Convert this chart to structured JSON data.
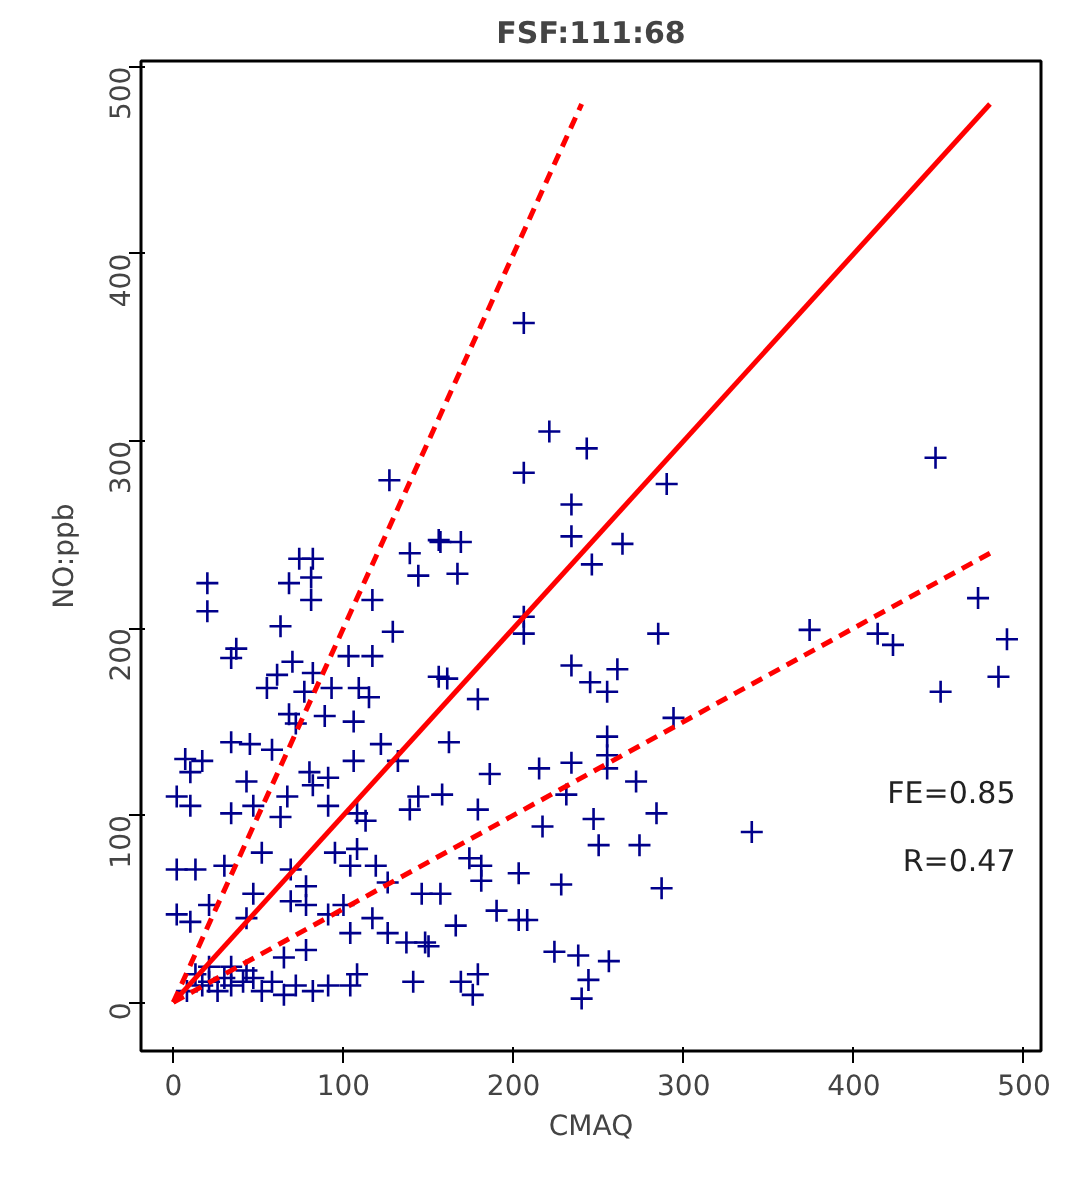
{
  "chart_data": {
    "type": "scatter",
    "title": "FSF:111:68",
    "xlabel": "CMAQ",
    "ylabel": "NO:ppb",
    "xlim": [
      -19,
      510
    ],
    "ylim": [
      -26,
      503
    ],
    "xticks": [
      0,
      100,
      200,
      300,
      400,
      500
    ],
    "yticks": [
      0,
      100,
      200,
      300,
      400,
      500
    ],
    "grid": false,
    "annotations": [
      "FE=0.85",
      "R=0.47"
    ],
    "series": [
      {
        "marker": "cross",
        "color": "#00008b",
        "x": [
          206,
          221,
          243,
          206,
          290,
          234,
          234,
          264,
          246,
          157,
          169,
          167,
          448,
          206,
          206,
          285,
          374,
          414,
          423,
          473,
          490,
          485,
          451,
          161,
          179,
          234,
          245,
          255,
          261,
          294,
          162,
          255,
          255,
          215,
          234,
          186,
          255,
          272,
          158,
          179,
          231,
          284,
          217,
          247,
          250,
          274,
          340,
          174,
          181,
          181,
          203,
          228,
          287,
          157,
          190,
          203,
          208,
          166,
          150,
          224,
          238,
          256,
          169,
          179,
          176,
          244,
          240,
          127,
          156,
          82,
          74,
          139,
          144,
          68,
          81,
          20,
          20,
          81,
          117,
          63,
          37,
          34,
          129,
          70,
          61,
          55,
          82,
          93,
          77,
          103,
          117,
          109,
          115,
          156,
          89,
          68,
          7,
          17,
          10,
          34,
          45,
          58,
          72,
          106,
          80,
          91,
          106,
          122,
          132,
          2,
          10,
          43,
          47,
          34,
          67,
          63,
          82,
          91,
          108,
          113,
          139,
          144,
          2,
          13,
          30,
          52,
          69,
          78,
          95,
          108,
          104,
          119,
          126,
          146,
          2,
          10,
          21,
          47,
          43,
          69,
          78,
          91,
          100,
          104,
          117,
          126,
          137,
          148,
          78,
          65,
          141,
          104,
          108,
          8,
          17,
          21,
          26,
          30,
          34,
          41,
          47,
          52,
          58,
          65,
          72,
          82,
          91,
          43,
          34,
          21,
          13
        ],
        "values": [
          363,
          305,
          296,
          283,
          277,
          266,
          249,
          245,
          234,
          246,
          246,
          229,
          291,
          206,
          197,
          197,
          199,
          197,
          191,
          216,
          194,
          174,
          166,
          173,
          162,
          180,
          171,
          166,
          178,
          152,
          139,
          142,
          132,
          125,
          128,
          122,
          125,
          118,
          111,
          103,
          111,
          101,
          94,
          98,
          84,
          84,
          91,
          77,
          73,
          65,
          69,
          63,
          61,
          58,
          49,
          44,
          44,
          41,
          30,
          27,
          25,
          22,
          11,
          15,
          4,
          12,
          2,
          279,
          247,
          237,
          237,
          240,
          228,
          224,
          227,
          224,
          209,
          215,
          215,
          201,
          189,
          184,
          198,
          182,
          175,
          168,
          176,
          168,
          166,
          185,
          185,
          168,
          163,
          174,
          153,
          154,
          130,
          129,
          123,
          139,
          138,
          135,
          149,
          150,
          123,
          120,
          129,
          138,
          129,
          110,
          105,
          118,
          105,
          101,
          110,
          99,
          116,
          105,
          101,
          97,
          103,
          110,
          71,
          71,
          73,
          80,
          71,
          62,
          80,
          82,
          73,
          73,
          64,
          58,
          47,
          43,
          52,
          58,
          45,
          54,
          52,
          47,
          52,
          37,
          45,
          37,
          32,
          32,
          28,
          24,
          11,
          9,
          15,
          6,
          9,
          11,
          6,
          13,
          9,
          11,
          13,
          6,
          11,
          4,
          9,
          6,
          9,
          17,
          19,
          19,
          15
        ]
      },
      {
        "type": "line",
        "color": "#ff0000",
        "line_style": "solid",
        "x": [
          0,
          480
        ],
        "values": [
          0,
          480
        ]
      },
      {
        "type": "line",
        "color": "#ff0000",
        "line_style": "dashed",
        "x": [
          0,
          240
        ],
        "values": [
          0,
          480
        ]
      },
      {
        "type": "line",
        "color": "#ff0000",
        "line_style": "dashed",
        "x": [
          0,
          480
        ],
        "values": [
          0,
          240
        ]
      }
    ]
  }
}
